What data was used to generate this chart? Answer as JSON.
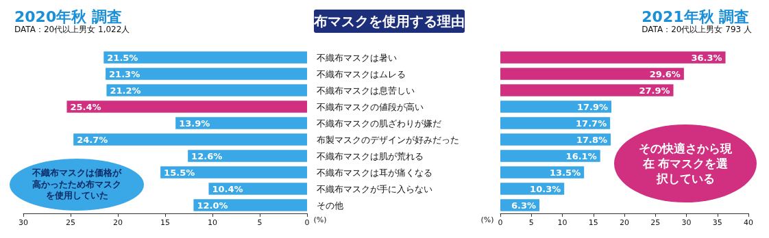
{
  "chart_data": [
    {
      "type": "bar",
      "orientation": "horizontal",
      "title": "2020年秋 調査",
      "subtitle": "DATA：20代以上男女 1,022人",
      "xlabel": "(%)",
      "categories": [
        "不織布マスクは暑い",
        "不織布マスクはムレる",
        "不織布マスクは息苦しい",
        "不織布マスクの値段が高い",
        "不織布マスクの肌ざわりが嫌だ",
        "布製マスクのデザインが好みだった",
        "不織布マスクは肌が荒れる",
        "不織布マスクは耳が痛くなる",
        "不織布マスクが手に入らない",
        "その他"
      ],
      "values": [
        21.5,
        21.3,
        21.2,
        25.4,
        13.9,
        24.7,
        12.6,
        15.5,
        10.4,
        12.0
      ],
      "value_labels": [
        "21.5%",
        "21.3%",
        "21.2%",
        "25.4%",
        "13.9%",
        "24.7%",
        "12.6%",
        "15.5%",
        "10.4%",
        "12.0%"
      ],
      "colors": [
        "#3aa8e6",
        "#3aa8e6",
        "#3aa8e6",
        "#d0307f",
        "#3aa8e6",
        "#3aa8e6",
        "#3aa8e6",
        "#3aa8e6",
        "#3aa8e6",
        "#3aa8e6"
      ],
      "xlim": [
        30,
        0
      ],
      "xticks": [
        30,
        25,
        20,
        15,
        10,
        5,
        0
      ],
      "grid": false,
      "annotations": [
        "布マスクを使用する理由",
        "不織布マスクは価格が高かったため布マスクを使用していた"
      ]
    },
    {
      "type": "bar",
      "orientation": "horizontal",
      "title": "2021年秋 調査",
      "subtitle": "DATA：20代以上男女 793 人",
      "xlabel": "(%)",
      "categories": [
        null,
        null,
        null,
        null,
        null,
        null,
        null,
        null,
        null,
        null
      ],
      "values": [
        36.3,
        29.6,
        27.9,
        17.9,
        17.7,
        17.8,
        16.1,
        13.5,
        10.3,
        6.3
      ],
      "value_labels": [
        "36.3%",
        "29.6%",
        "27.9%",
        "17.9%",
        "17.7%",
        "17.8%",
        "16.1%",
        "13.5%",
        "10.3%",
        "6.3%"
      ],
      "colors": [
        "#d0307f",
        "#d0307f",
        "#d0307f",
        "#3aa8e6",
        "#3aa8e6",
        "#3aa8e6",
        "#3aa8e6",
        "#3aa8e6",
        "#3aa8e6",
        "#3aa8e6"
      ],
      "xlim": [
        0,
        40
      ],
      "xticks": [
        0,
        5,
        10,
        15,
        20,
        25,
        30,
        35,
        40
      ],
      "grid": false,
      "annotations": [
        "その快適さから現在 布マスクを選択している"
      ]
    }
  ]
}
